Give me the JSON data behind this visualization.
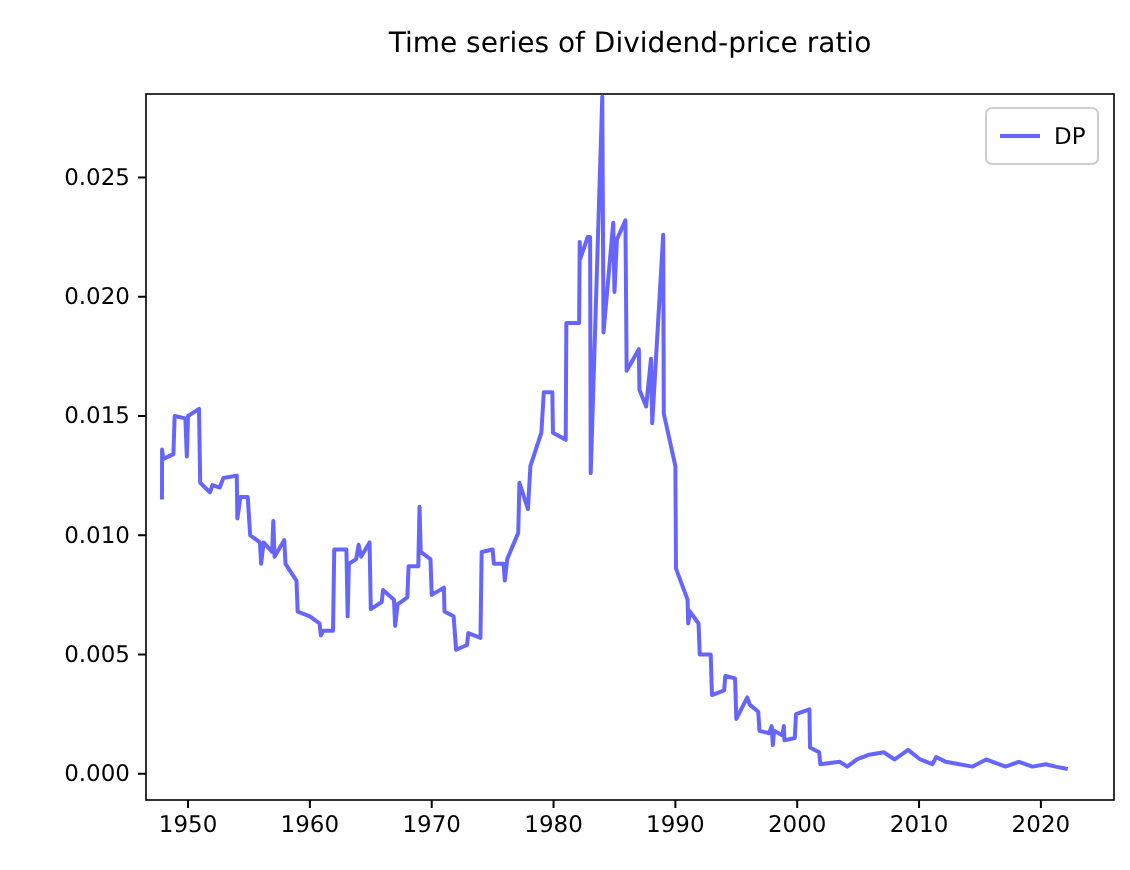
{
  "chart_data": {
    "type": "line",
    "title": "Time series of Dividend-price ratio",
    "xlim": [
      1946.55,
      2026
    ],
    "ylim": [
      -0.0011,
      0.0285
    ],
    "xticks": [
      1950,
      1960,
      1970,
      1980,
      1990,
      2000,
      2010,
      2020
    ],
    "yticks": [
      {
        "value": 0,
        "label": "0.000"
      },
      {
        "value": 0.005,
        "label": "0.005"
      },
      {
        "value": 0.01,
        "label": "0.010"
      },
      {
        "value": 0.015,
        "label": "0.015"
      },
      {
        "value": 0.02,
        "label": "0.020"
      },
      {
        "value": 0.025,
        "label": "0.025"
      }
    ],
    "grid": false,
    "legend": "top right",
    "marker": "none",
    "line_style": "solid",
    "series": [
      {
        "name": "DP",
        "color": "#6666ff",
        "x": [
          1947.86,
          1947.87,
          1947.97,
          1948.8,
          1948.9,
          1949.78,
          1949.9,
          1950.0,
          1950.9,
          1951.0,
          1951.8,
          1952.0,
          1952.6,
          1952.9,
          1954.0,
          1954.05,
          1954.3,
          1954.9,
          1955.1,
          1955.9,
          1956.0,
          1956.2,
          1956.9,
          1957.0,
          1957.1,
          1957.9,
          1958.0,
          1958.9,
          1959.0,
          1960.0,
          1960.8,
          1960.9,
          1961.1,
          1961.9,
          1962.0,
          1963.0,
          1963.1,
          1963.2,
          1963.8,
          1964.0,
          1964.2,
          1964.9,
          1965.0,
          1965.9,
          1966.0,
          1966.9,
          1967.0,
          1967.2,
          1968.0,
          1968.1,
          1968.9,
          1969.0,
          1969.1,
          1969.9,
          1970.0,
          1971.0,
          1971.05,
          1971.8,
          1972.0,
          1972.9,
          1973.0,
          1974.0,
          1974.1,
          1975.0,
          1975.1,
          1975.9,
          1976.0,
          1976.2,
          1977.1,
          1977.2,
          1977.9,
          1978.1,
          1979.0,
          1979.2,
          1979.9,
          1979.95,
          1981.0,
          1981.05,
          1982.1,
          1982.15,
          1982.2,
          1982.8,
          1983.0,
          1983.05,
          1984.0,
          1984.1,
          1984.9,
          1985.0,
          1985.2,
          1985.9,
          1986.0,
          1987.0,
          1987.05,
          1987.6,
          1988.0,
          1988.1,
          1989.0,
          1989.05,
          1990.0,
          1990.05,
          1991.0,
          1991.05,
          1991.2,
          1991.9,
          1992.0,
          1992.9,
          1993.0,
          1994.0,
          1994.1,
          1994.9,
          1995.0,
          1995.9,
          1996.1,
          1996.8,
          1996.9,
          1997.7,
          1997.9,
          1998.0,
          1998.1,
          1998.8,
          1998.9,
          1998.95,
          1999.8,
          1999.9,
          2001.0,
          2001.05,
          2001.8,
          2001.9,
          2003.5,
          2004.1,
          2004.9,
          2005.9,
          2007.1,
          2008.0,
          2009.1,
          2010.1,
          2011.1,
          2011.4,
          2012.2,
          2013.3,
          2014.4,
          2015.5,
          2017.1,
          2018.2,
          2019.3,
          2020.4,
          2021.2,
          2022.2
        ],
        "values": [
          0.0115,
          0.0136,
          0.0132,
          0.0134,
          0.015,
          0.0149,
          0.0133,
          0.015,
          0.0153,
          0.0122,
          0.0118,
          0.0121,
          0.012,
          0.0124,
          0.0125,
          0.0107,
          0.0116,
          0.0116,
          0.01,
          0.0097,
          0.0088,
          0.0097,
          0.0093,
          0.0106,
          0.0091,
          0.0098,
          0.0088,
          0.0081,
          0.0068,
          0.0066,
          0.0063,
          0.0058,
          0.006,
          0.006,
          0.0094,
          0.0094,
          0.0066,
          0.0088,
          0.009,
          0.0096,
          0.0091,
          0.0097,
          0.0069,
          0.0072,
          0.0077,
          0.0073,
          0.0062,
          0.0071,
          0.0074,
          0.0087,
          0.0087,
          0.0112,
          0.0093,
          0.009,
          0.0075,
          0.0078,
          0.0068,
          0.0066,
          0.0052,
          0.0054,
          0.0059,
          0.0057,
          0.0093,
          0.0094,
          0.0088,
          0.0088,
          0.0081,
          0.009,
          0.0101,
          0.0122,
          0.0111,
          0.0129,
          0.0143,
          0.016,
          0.016,
          0.0143,
          0.014,
          0.0189,
          0.0189,
          0.0223,
          0.0216,
          0.0225,
          0.0225,
          0.0126,
          0.0284,
          0.0185,
          0.0231,
          0.0202,
          0.0224,
          0.0232,
          0.0169,
          0.0178,
          0.0161,
          0.0154,
          0.0174,
          0.0147,
          0.0226,
          0.0151,
          0.0129,
          0.0086,
          0.0073,
          0.0063,
          0.0068,
          0.0063,
          0.005,
          0.005,
          0.0033,
          0.0035,
          0.0041,
          0.004,
          0.0023,
          0.0032,
          0.0029,
          0.0026,
          0.0018,
          0.0017,
          0.002,
          0.0012,
          0.0018,
          0.0016,
          0.002,
          0.0014,
          0.0015,
          0.0025,
          0.0027,
          0.0011,
          0.0009,
          0.0004,
          0.0005,
          0.0003,
          0.0006,
          0.0008,
          0.0009,
          0.0006,
          0.001,
          0.0006,
          0.0004,
          0.0007,
          0.0005,
          0.0004,
          0.0003,
          0.0006,
          0.0003,
          0.0005,
          0.0003,
          0.0004,
          0.0003,
          0.0002
        ]
      }
    ]
  }
}
